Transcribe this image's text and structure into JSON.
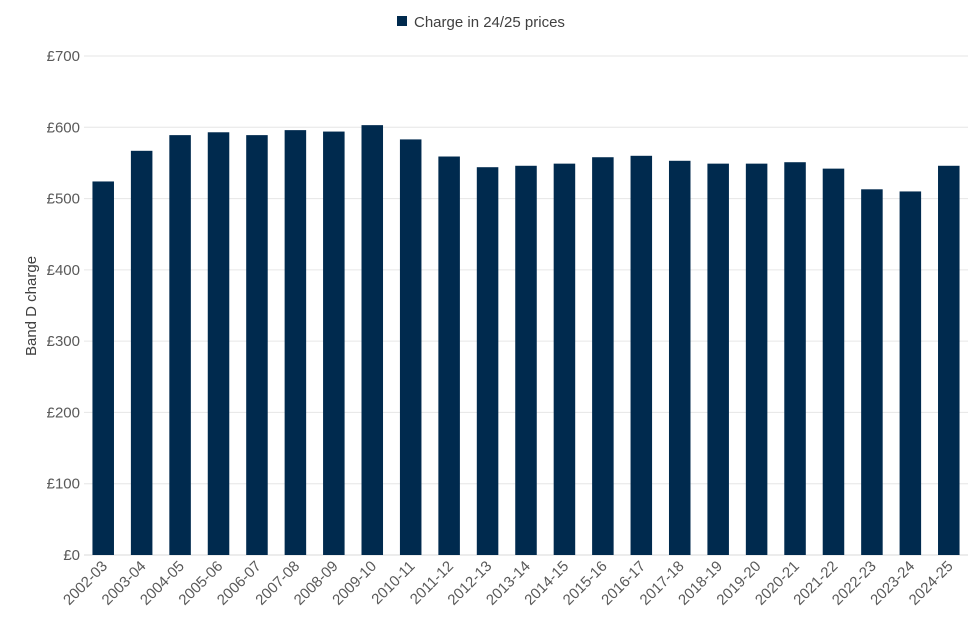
{
  "chart_data": {
    "type": "bar",
    "title": "",
    "xlabel": "",
    "ylabel": "Band D charge",
    "ylim": [
      0,
      700
    ],
    "y_ticks": [
      0,
      100,
      200,
      300,
      400,
      500,
      600,
      700
    ],
    "y_tick_labels": [
      "£0",
      "£100",
      "£200",
      "£300",
      "£400",
      "£500",
      "£600",
      "£700"
    ],
    "categories": [
      "2002-03",
      "2003-04",
      "2004-05",
      "2005-06",
      "2006-07",
      "2007-08",
      "2008-09",
      "2009-10",
      "2010-11",
      "2011-12",
      "2012-13",
      "2013-14",
      "2014-15",
      "2015-16",
      "2016-17",
      "2017-18",
      "2018-19",
      "2019-20",
      "2020-21",
      "2021-22",
      "2022-23",
      "2023-24",
      "2024-25"
    ],
    "series": [
      {
        "name": "Charge in 24/25 prices",
        "color": "#002a4e",
        "values": [
          524,
          567,
          589,
          593,
          589,
          596,
          594,
          603,
          583,
          559,
          544,
          546,
          549,
          558,
          560,
          553,
          549,
          549,
          551,
          542,
          513,
          510,
          546
        ]
      }
    ],
    "grid": true,
    "legend_position": "top-center"
  }
}
